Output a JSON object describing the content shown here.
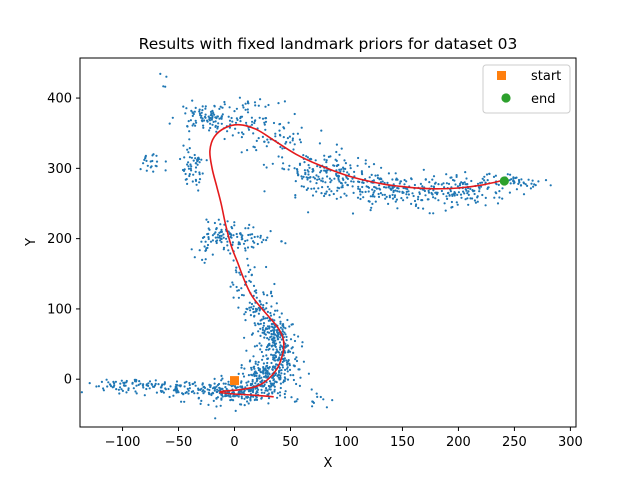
{
  "chart_data": {
    "type": "scatter",
    "title": "Results with fixed landmark priors for dataset 03",
    "xlabel": "X",
    "ylabel": "Y",
    "xlim": [
      -138,
      305
    ],
    "ylim": [
      -68,
      457
    ],
    "xticks": [
      -100,
      -50,
      0,
      50,
      100,
      150,
      200,
      250,
      300
    ],
    "yticks": [
      0,
      100,
      200,
      300,
      400
    ],
    "grid": false,
    "legend": {
      "placement": "top-right",
      "entries": [
        {
          "label": "start",
          "marker": "square",
          "color": "#ff7f0e"
        },
        {
          "label": "end",
          "marker": "circle",
          "color": "#2ca02c"
        }
      ]
    },
    "colors": {
      "landmarks": "#1f77b4",
      "trajectory": "#e41a1c",
      "start": "#ff7f0e",
      "end": "#2ca02c"
    },
    "start_point": {
      "x": 0,
      "y": -2
    },
    "end_point": {
      "x": 241,
      "y": 282
    },
    "trajectory": [
      [
        35,
        -25
      ],
      [
        20,
        -23
      ],
      [
        0,
        -21
      ],
      [
        -12,
        -19
      ],
      [
        -10,
        -17
      ],
      [
        5,
        -15
      ],
      [
        20,
        -10
      ],
      [
        30,
        0
      ],
      [
        38,
        15
      ],
      [
        42,
        30
      ],
      [
        44,
        45
      ],
      [
        43,
        60
      ],
      [
        38,
        75
      ],
      [
        30,
        90
      ],
      [
        22,
        105
      ],
      [
        15,
        120
      ],
      [
        9,
        140
      ],
      [
        3,
        165
      ],
      [
        -3,
        190
      ],
      [
        -8,
        220
      ],
      [
        -12,
        250
      ],
      [
        -16,
        275
      ],
      [
        -20,
        300
      ],
      [
        -22,
        325
      ],
      [
        -18,
        345
      ],
      [
        -8,
        358
      ],
      [
        5,
        362
      ],
      [
        20,
        355
      ],
      [
        35,
        340
      ],
      [
        55,
        320
      ],
      [
        75,
        305
      ],
      [
        100,
        290
      ],
      [
        125,
        280
      ],
      [
        150,
        274
      ],
      [
        175,
        271
      ],
      [
        200,
        272
      ],
      [
        220,
        276
      ],
      [
        240,
        283
      ]
    ],
    "landmark_clusters": [
      {
        "cx": -90,
        "cy": -8,
        "sx": 20,
        "sy": 5,
        "n": 70
      },
      {
        "cx": -45,
        "cy": -15,
        "sx": 20,
        "sy": 6,
        "n": 90
      },
      {
        "cx": 5,
        "cy": -18,
        "sx": 18,
        "sy": 8,
        "n": 200
      },
      {
        "cx": 30,
        "cy": 5,
        "sx": 14,
        "sy": 12,
        "n": 160
      },
      {
        "cx": 40,
        "cy": 40,
        "sx": 9,
        "sy": 18,
        "n": 160
      },
      {
        "cx": 35,
        "cy": 70,
        "sx": 7,
        "sy": 12,
        "n": 90
      },
      {
        "cx": 20,
        "cy": 105,
        "sx": 8,
        "sy": 15,
        "n": 60
      },
      {
        "cx": 8,
        "cy": 140,
        "sx": 7,
        "sy": 20,
        "n": 35
      },
      {
        "cx": -10,
        "cy": 205,
        "sx": 12,
        "sy": 10,
        "n": 80
      },
      {
        "cx": 15,
        "cy": 198,
        "sx": 13,
        "sy": 6,
        "n": 35
      },
      {
        "cx": -30,
        "cy": 180,
        "sx": 5,
        "sy": 10,
        "n": 12
      },
      {
        "cx": -38,
        "cy": 300,
        "sx": 6,
        "sy": 16,
        "n": 55
      },
      {
        "cx": -75,
        "cy": 305,
        "sx": 6,
        "sy": 12,
        "n": 22
      },
      {
        "cx": -25,
        "cy": 375,
        "sx": 12,
        "sy": 10,
        "n": 90
      },
      {
        "cx": 12,
        "cy": 370,
        "sx": 14,
        "sy": 12,
        "n": 70
      },
      {
        "cx": 40,
        "cy": 340,
        "sx": 16,
        "sy": 10,
        "n": 45
      },
      {
        "cx": 75,
        "cy": 295,
        "sx": 20,
        "sy": 14,
        "n": 130
      },
      {
        "cx": 115,
        "cy": 275,
        "sx": 22,
        "sy": 14,
        "n": 140
      },
      {
        "cx": 165,
        "cy": 265,
        "sx": 22,
        "sy": 12,
        "n": 130
      },
      {
        "cx": 215,
        "cy": 270,
        "sx": 18,
        "sy": 10,
        "n": 100
      },
      {
        "cx": 255,
        "cy": 283,
        "sx": 12,
        "sy": 5,
        "n": 40
      },
      {
        "cx": -60,
        "cy": 425,
        "sx": 12,
        "sy": 5,
        "n": 4
      },
      {
        "cx": 70,
        "cy": -30,
        "sx": 12,
        "sy": 8,
        "n": 15
      }
    ]
  }
}
